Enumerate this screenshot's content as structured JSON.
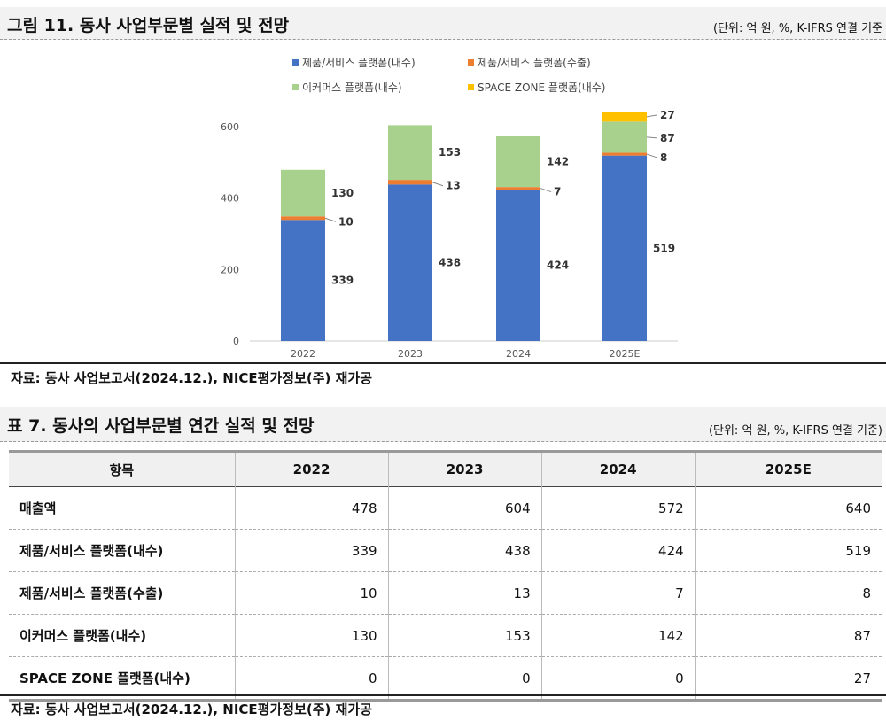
{
  "figure": {
    "title": "그림 11. 동사 사업부문별 실적 및 전망",
    "unit": "(단위: 억 원, %, K-IFRS 연결 기준",
    "source": "자료: 동사 사업보고서(2024.12.), NICE평가정보(주) 재가공"
  },
  "chart_data": {
    "type": "bar",
    "stacked": true,
    "categories": [
      "2022",
      "2023",
      "2024",
      "2025E"
    ],
    "series": [
      {
        "name": "제품/서비스 플랫폼(내수)",
        "color": "#4472C4",
        "values": [
          339,
          438,
          424,
          519
        ]
      },
      {
        "name": "제품/서비스 플랫폼(수출)",
        "color": "#ED7D31",
        "values": [
          10,
          13,
          7,
          8
        ]
      },
      {
        "name": "이커머스 플랫폼(내수)",
        "color": "#A9D18E",
        "values": [
          130,
          153,
          142,
          87
        ]
      },
      {
        "name": "SPACE ZONE 플랫폼(내수)",
        "color": "#FFC000",
        "values": [
          0,
          0,
          0,
          27
        ]
      }
    ],
    "yticks": [
      0,
      200,
      400,
      600
    ],
    "ylim": [
      0,
      600
    ],
    "legend": "top",
    "grid": false
  },
  "table": {
    "title": "표 7. 동사의 사업부문별 연간 실적 및 전망",
    "unit": "(단위: 억 원, %, K-IFRS 연결 기준)",
    "headers": [
      "항목",
      "2022",
      "2023",
      "2024",
      "2025E"
    ],
    "rows": [
      [
        "매출액",
        "478",
        "604",
        "572",
        "640"
      ],
      [
        "제품/서비스 플랫폼(내수)",
        "339",
        "438",
        "424",
        "519"
      ],
      [
        "제품/서비스 플랫폼(수출)",
        "10",
        "13",
        "7",
        "8"
      ],
      [
        "이커머스 플랫폼(내수)",
        "130",
        "153",
        "142",
        "87"
      ],
      [
        "SPACE ZONE 플랫폼(내수)",
        "0",
        "0",
        "0",
        "27"
      ]
    ],
    "source": "자료: 동사 사업보고서(2024.12.), NICE평가정보(주) 재가공"
  }
}
